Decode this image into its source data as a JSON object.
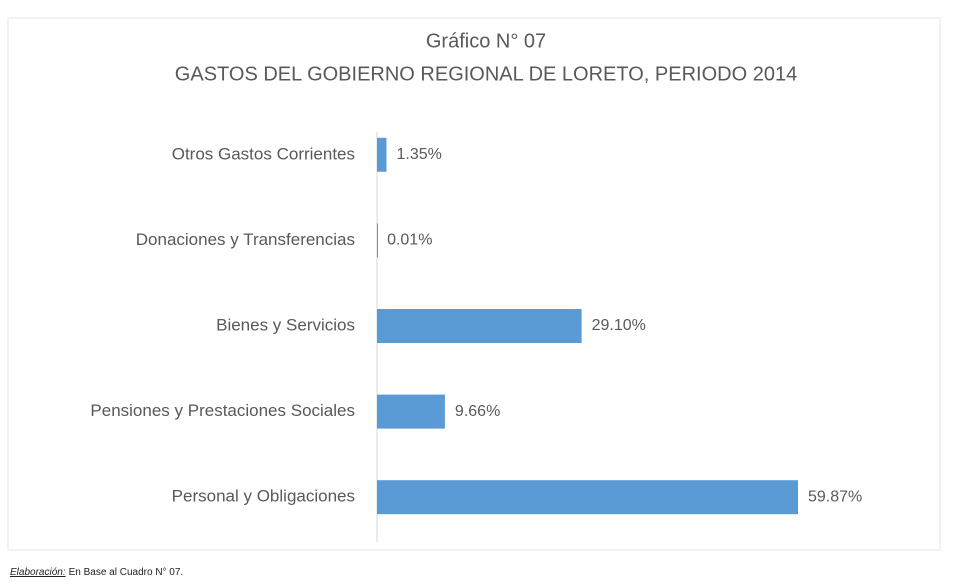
{
  "chart_data": {
    "type": "bar",
    "orientation": "horizontal",
    "title": "Gráfico N° 07",
    "subtitle": "GASTOS DEL GOBIERNO REGIONAL DE LORETO, PERIODO 2014",
    "categories": [
      "Otros Gastos Corrientes",
      "Donaciones y Transferencias",
      "Bienes y Servicios",
      "Pensiones y Prestaciones Sociales",
      "Personal y Obligaciones"
    ],
    "values": [
      1.35,
      0.01,
      29.1,
      9.66,
      59.87
    ],
    "value_labels": [
      "1.35%",
      "0.01%",
      "29.10%",
      "9.66%",
      "59.87%"
    ],
    "color": "#5b9bd5",
    "source_label": "Elaboración:",
    "source": "En Base al Cuadro N° 07."
  }
}
